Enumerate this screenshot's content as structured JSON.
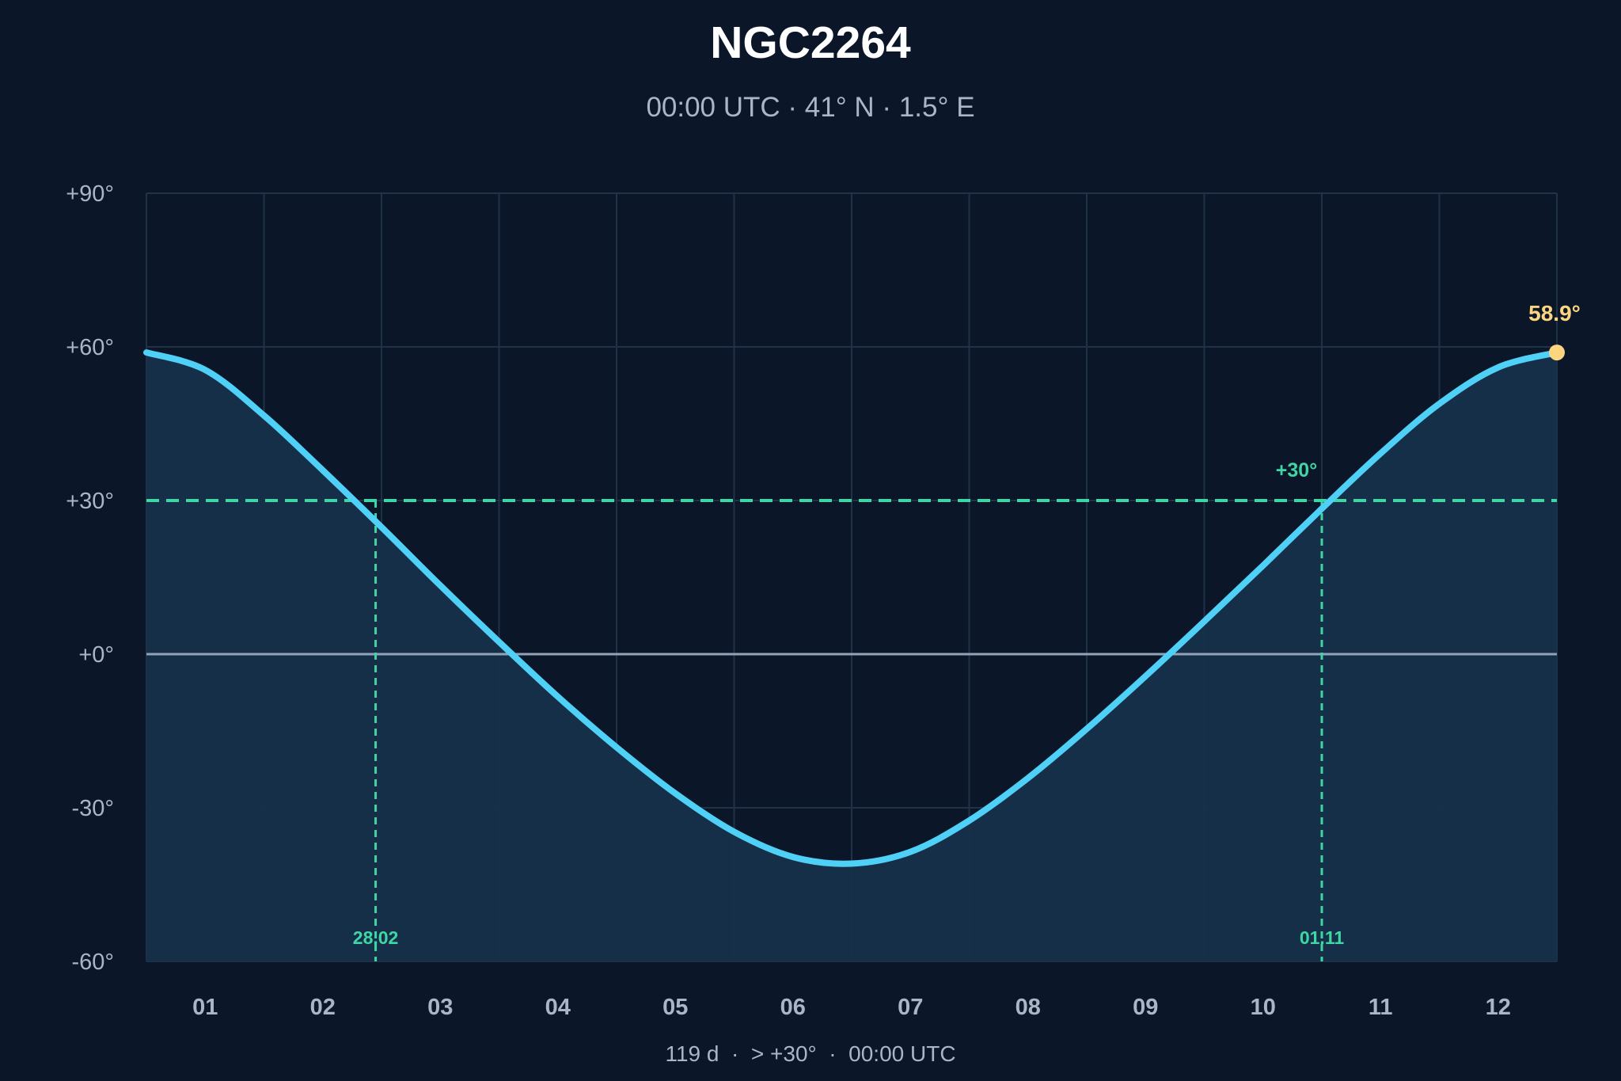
{
  "chart_data": {
    "type": "line",
    "title": "NGC2264",
    "subtitle": "00:00 UTC · 41° N · 1.5° E",
    "categories": [
      "01",
      "02",
      "03",
      "04",
      "05",
      "06",
      "07",
      "08",
      "09",
      "10",
      "11",
      "12"
    ],
    "y_tick_labels": [
      "+90°",
      "+60°",
      "+30°",
      "+0°",
      "-30°",
      "-60°"
    ],
    "y_ticks": [
      90,
      60,
      30,
      0,
      -30,
      -60
    ],
    "ylim": [
      -60,
      90
    ],
    "x_range_months": [
      0.5,
      12.5
    ],
    "series": [
      {
        "x": [
          0.5,
          1,
          1.5,
          2,
          2.5,
          3,
          3.5,
          4,
          4.5,
          5,
          5.5,
          6,
          6.5,
          7,
          7.5,
          8,
          8.5,
          9,
          9.5,
          10,
          10.5,
          11,
          11.5,
          12,
          12.5
        ],
        "y": [
          58.9,
          55.5,
          46.6,
          35.9,
          24.8,
          13.4,
          2.4,
          -8.3,
          -18.2,
          -27.2,
          -34.7,
          -39.6,
          -40.9,
          -38.6,
          -32.5,
          -24.2,
          -14.6,
          -4.3,
          6.4,
          17.3,
          28.4,
          39.2,
          48.9,
          56.0,
          58.9
        ],
        "color": "#4fd0f7"
      }
    ],
    "threshold": {
      "value": 30,
      "label": "+30°",
      "color": "#3fd6a6"
    },
    "crossings": [
      {
        "x": 2.45,
        "label": "28.02"
      },
      {
        "x": 10.5,
        "label": "01.11"
      }
    ],
    "peak": {
      "x": 12.5,
      "y": 58.9,
      "label": "58.9°",
      "color": "#fcd581"
    },
    "grid": true,
    "footer": "119 d  ·  > +30°  ·  00:00 UTC"
  }
}
